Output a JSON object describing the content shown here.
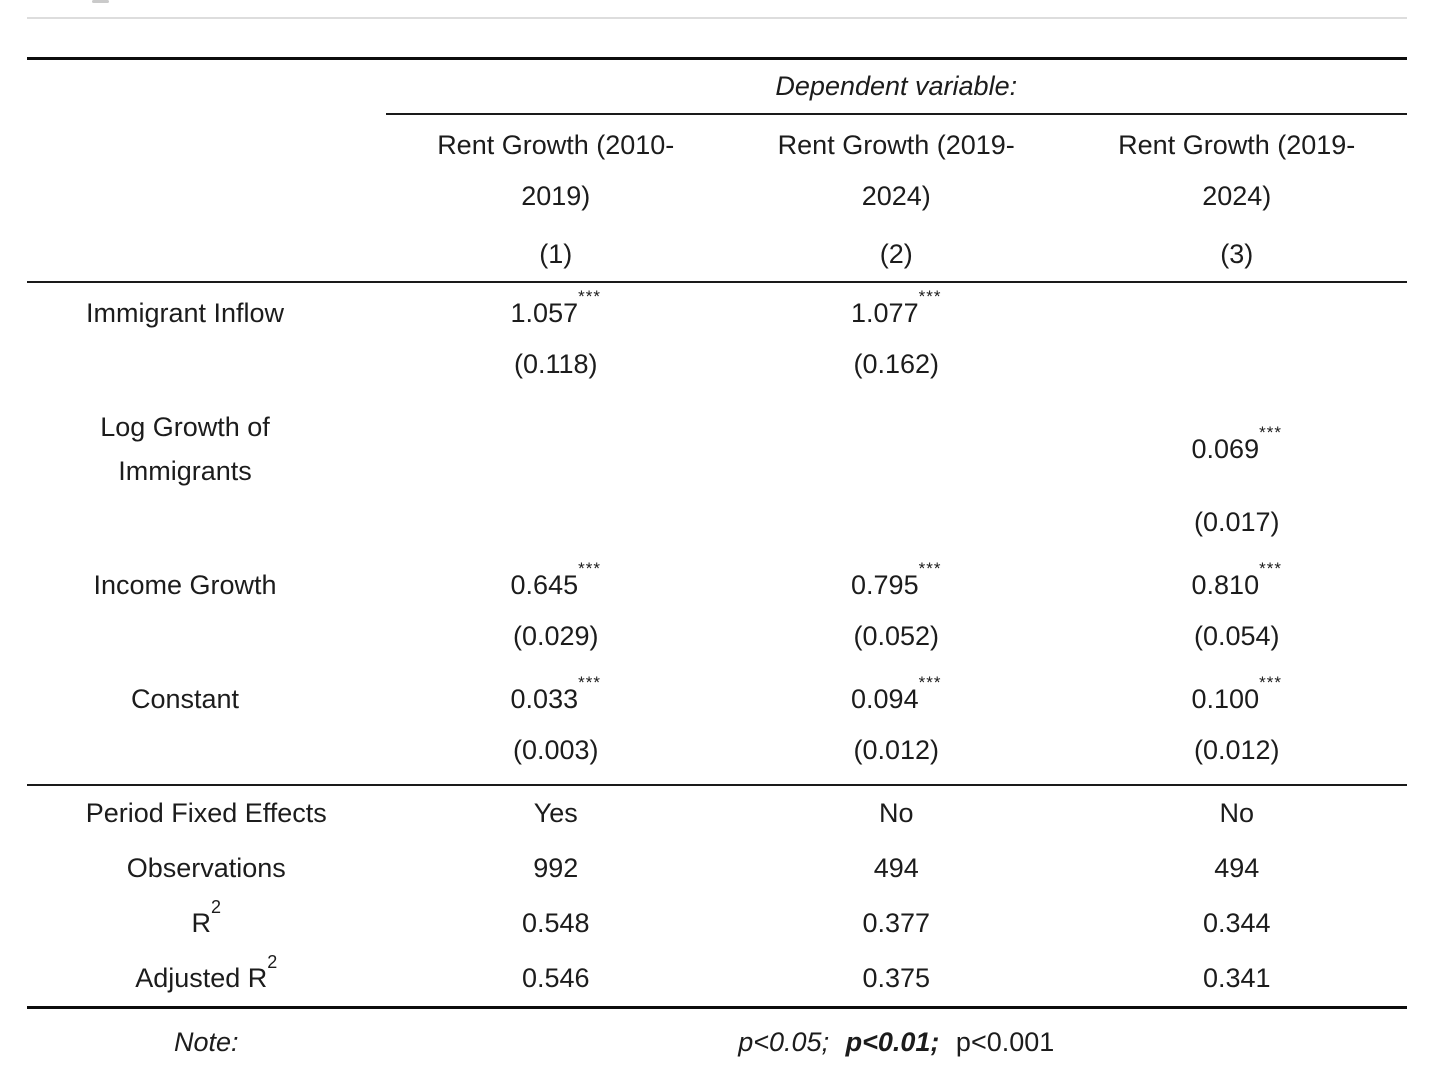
{
  "colors": {
    "text": "#1c1c1c",
    "rule_heavy": "#0d0d0d",
    "rule_light": "#1a1a1a",
    "top_divider": "#dddddd",
    "background": "#ffffff"
  },
  "table": {
    "dependent_variable_label": "Dependent variable:",
    "columns": [
      {
        "label": "Rent Growth (2010-2019)",
        "number": "(1)"
      },
      {
        "label": "Rent Growth (2019-2024)",
        "number": "(2)"
      },
      {
        "label": "Rent Growth (2019-2024)",
        "number": "(3)"
      }
    ],
    "coefficient_rows": [
      {
        "label": "Immigrant Inflow",
        "estimates": [
          {
            "value": "1.057",
            "stars": "***"
          },
          {
            "value": "1.077",
            "stars": "***"
          },
          {
            "value": "",
            "stars": ""
          }
        ],
        "std_errors": [
          "(0.118)",
          "(0.162)",
          ""
        ]
      },
      {
        "label": "Log Growth of Immigrants",
        "estimates": [
          {
            "value": "",
            "stars": ""
          },
          {
            "value": "",
            "stars": ""
          },
          {
            "value": "0.069",
            "stars": "***"
          }
        ],
        "std_errors": [
          "",
          "",
          "(0.017)"
        ]
      },
      {
        "label": "Income Growth",
        "estimates": [
          {
            "value": "0.645",
            "stars": "***"
          },
          {
            "value": "0.795",
            "stars": "***"
          },
          {
            "value": "0.810",
            "stars": "***"
          }
        ],
        "std_errors": [
          "(0.029)",
          "(0.052)",
          "(0.054)"
        ]
      },
      {
        "label": "Constant",
        "estimates": [
          {
            "value": "0.033",
            "stars": "***"
          },
          {
            "value": "0.094",
            "stars": "***"
          },
          {
            "value": "0.100",
            "stars": "***"
          }
        ],
        "std_errors": [
          "(0.003)",
          "(0.012)",
          "(0.012)"
        ]
      }
    ],
    "summary_rows": [
      {
        "label": "Period Fixed Effects",
        "label_sup": "",
        "values": [
          "Yes",
          "No",
          "No"
        ]
      },
      {
        "label": "Observations",
        "label_sup": "",
        "values": [
          "992",
          "494",
          "494"
        ]
      },
      {
        "label": "R",
        "label_sup": "2",
        "values": [
          "0.548",
          "0.377",
          "0.344"
        ]
      },
      {
        "label": "Adjusted R",
        "label_sup": "2",
        "values": [
          "0.546",
          "0.375",
          "0.341"
        ]
      }
    ],
    "note": {
      "label": "Note:",
      "segments": [
        {
          "text": "p<0.05;"
        },
        {
          "text": "p<0.01;"
        },
        {
          "text": "p<0.001"
        }
      ]
    }
  }
}
